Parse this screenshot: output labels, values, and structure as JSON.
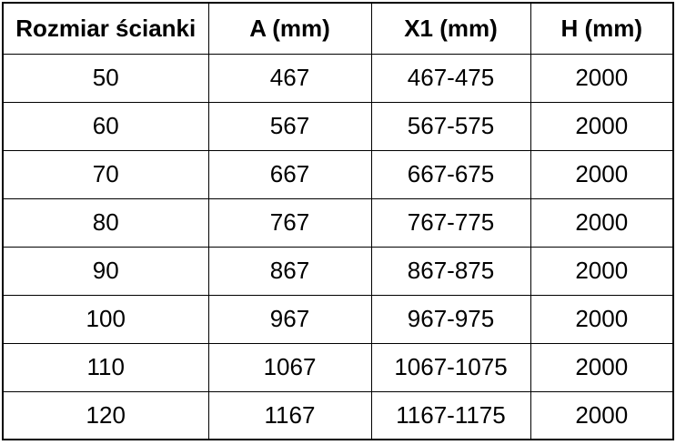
{
  "chart_data": {
    "type": "table",
    "columns": [
      "Rozmiar ścianki",
      "A (mm)",
      "X1 (mm)",
      "H (mm)"
    ],
    "rows": [
      [
        "50",
        "467",
        "467-475",
        "2000"
      ],
      [
        "60",
        "567",
        "567-575",
        "2000"
      ],
      [
        "70",
        "667",
        "667-675",
        "2000"
      ],
      [
        "80",
        "767",
        "767-775",
        "2000"
      ],
      [
        "90",
        "867",
        "867-875",
        "2000"
      ],
      [
        "100",
        "967",
        "967-975",
        "2000"
      ],
      [
        "110",
        "1067",
        "1067-1075",
        "2000"
      ],
      [
        "120",
        "1167",
        "1167-1175",
        "2000"
      ]
    ],
    "layout": {
      "grid": true,
      "header_bold": true,
      "cell_align": "center"
    }
  },
  "colors": {
    "border": "#000000",
    "text": "#000000",
    "background": "#ffffff"
  }
}
